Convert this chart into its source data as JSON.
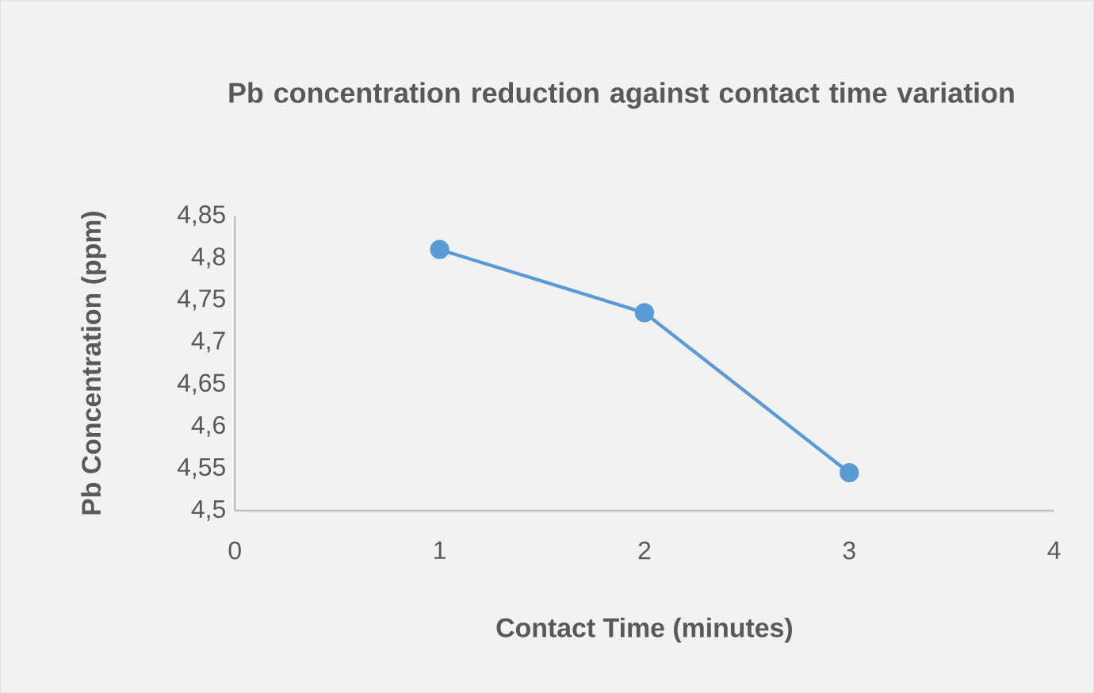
{
  "chart_data": {
    "type": "line",
    "title": "Pb concentration reduction against contact time variation",
    "xlabel": "Contact Time (minutes)",
    "ylabel": "Pb Concentration (ppm)",
    "x": [
      1,
      2,
      3
    ],
    "series": [
      {
        "color": "#5b9bd5",
        "values": [
          4.81,
          4.735,
          4.545
        ]
      }
    ],
    "xlim": [
      0,
      4
    ],
    "xticks": [
      0,
      1,
      2,
      3,
      4
    ],
    "ylim": [
      4.5,
      4.85
    ],
    "yticks": [
      {
        "value": 4.5,
        "label": "4,5"
      },
      {
        "value": 4.55,
        "label": "4,55"
      },
      {
        "value": 4.6,
        "label": "4,6"
      },
      {
        "value": 4.65,
        "label": "4,65"
      },
      {
        "value": 4.7,
        "label": "4,7"
      },
      {
        "value": 4.75,
        "label": "4,75"
      },
      {
        "value": 4.8,
        "label": "4,8"
      },
      {
        "value": 4.85,
        "label": "4,85"
      }
    ],
    "grid": false,
    "marker": "circle",
    "line_style": "solid"
  }
}
